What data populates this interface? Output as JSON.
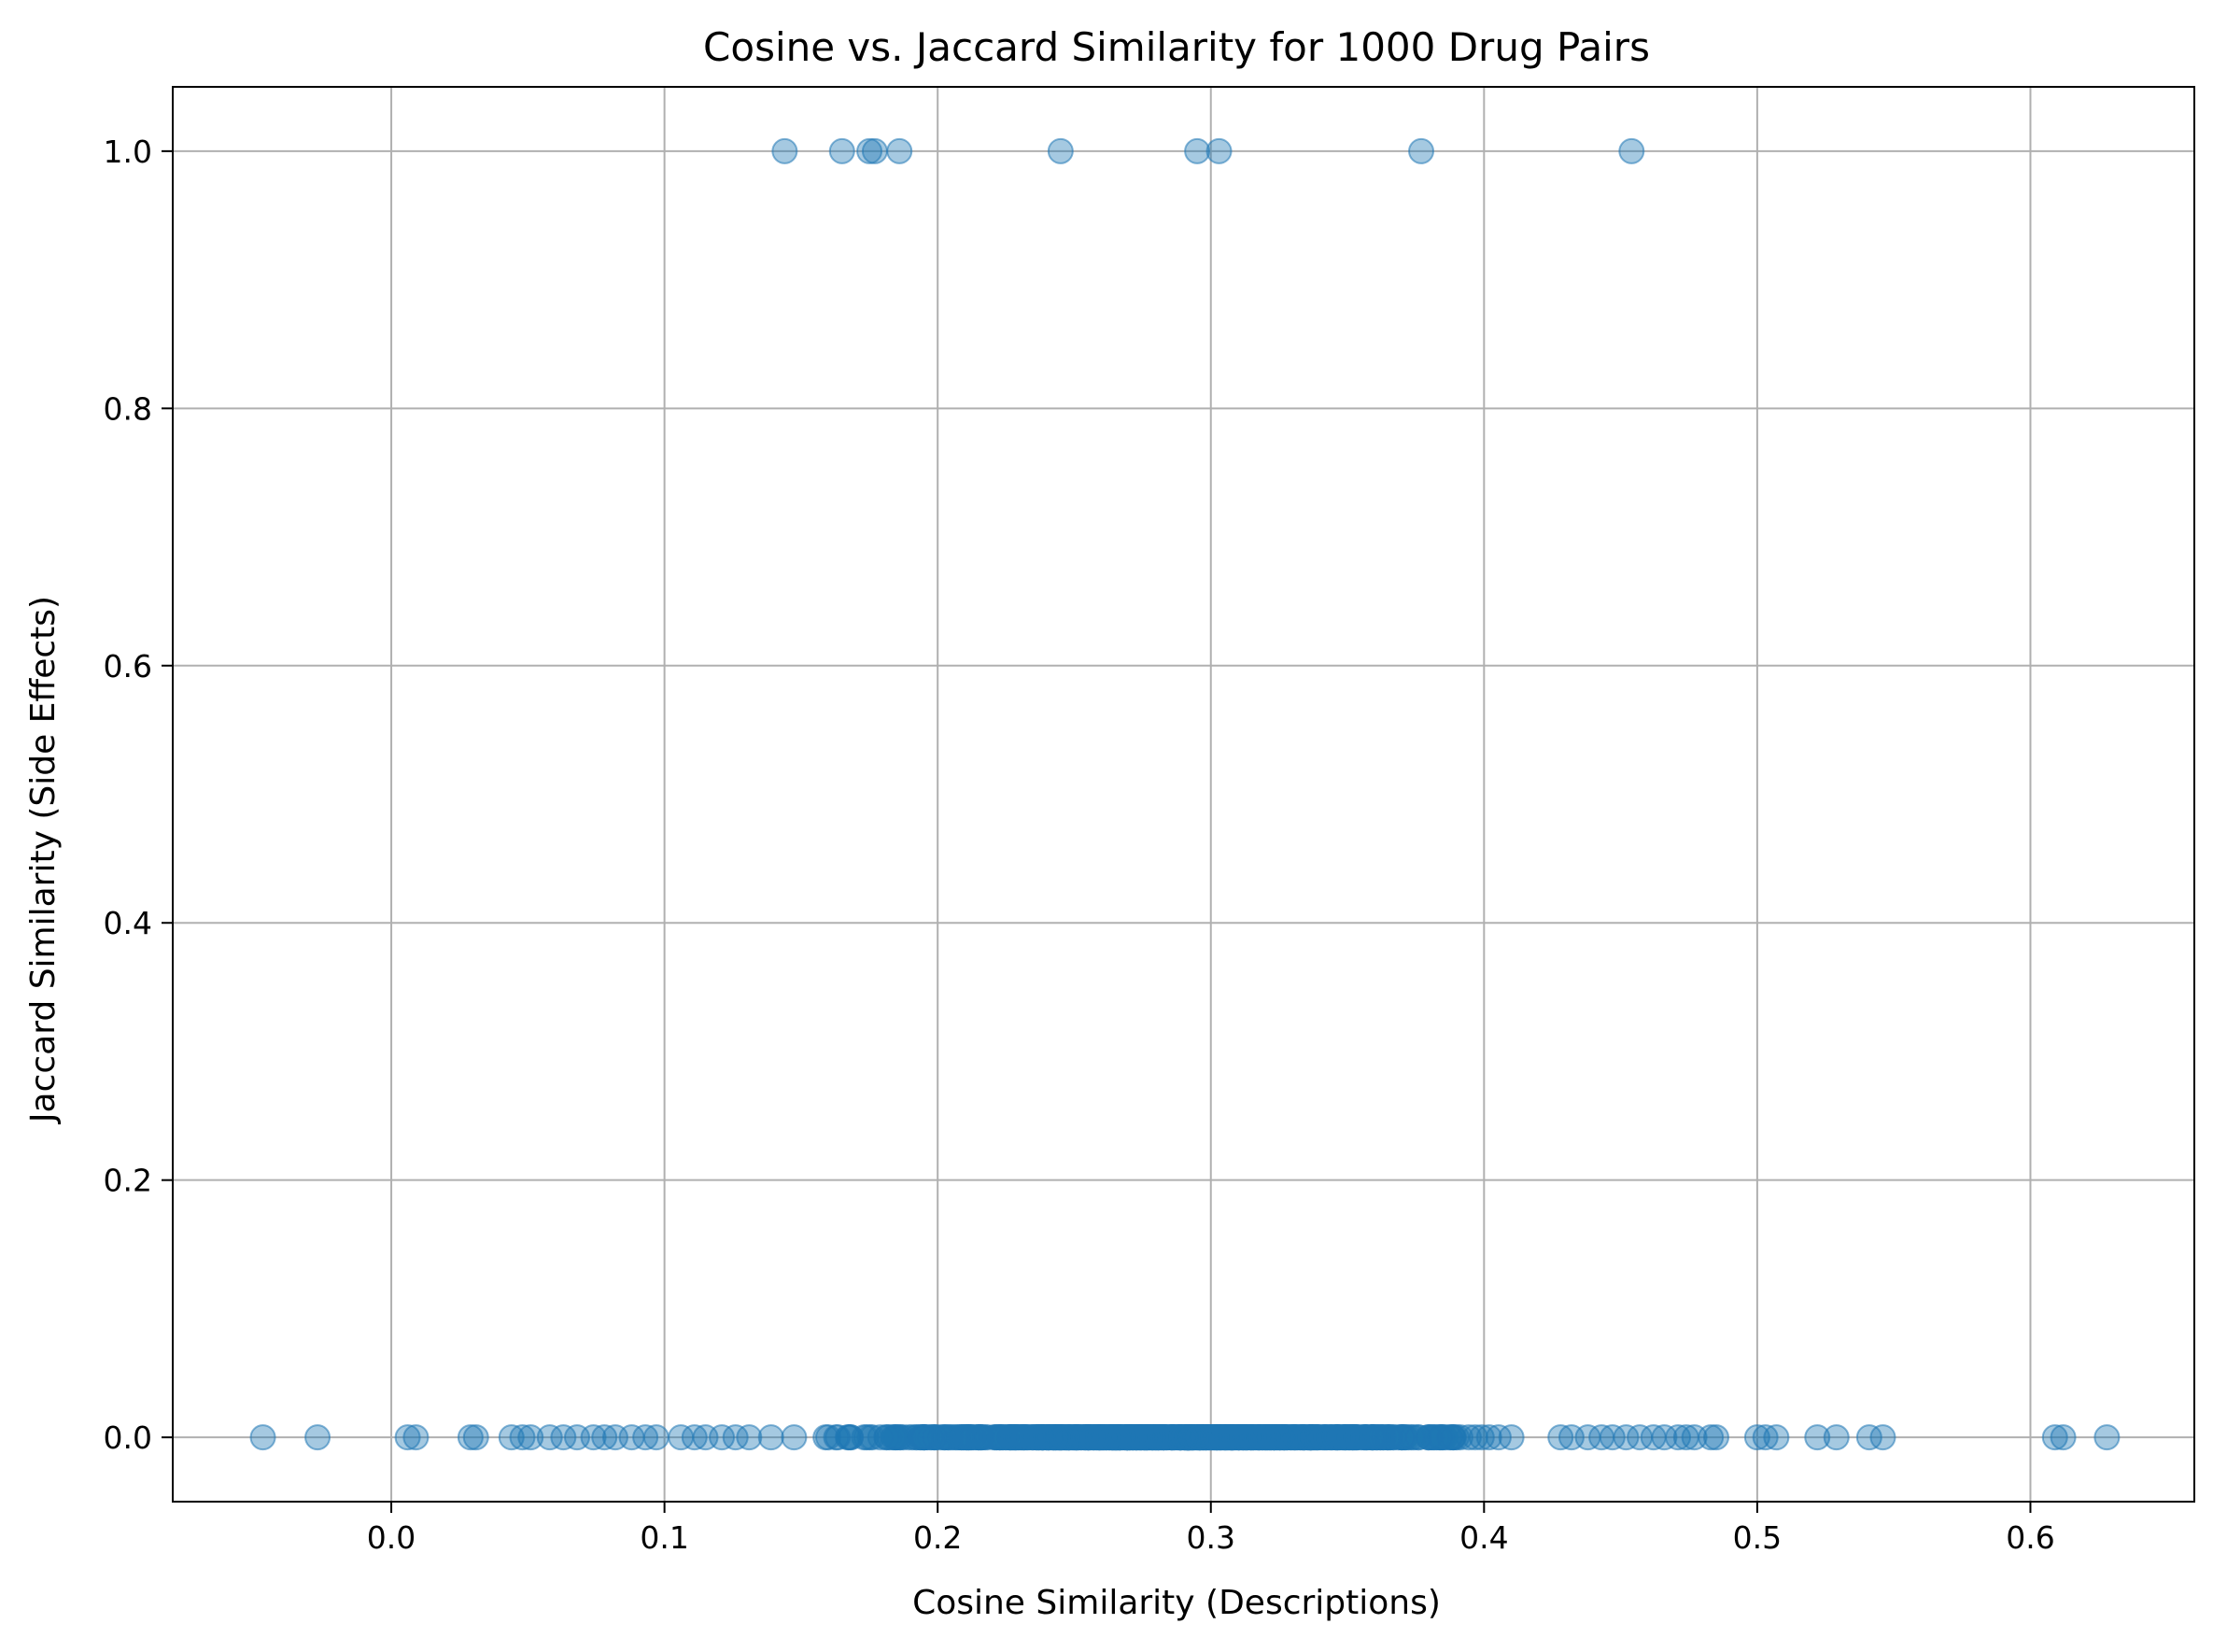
{
  "chart_data": {
    "type": "scatter",
    "title": "Cosine vs. Jaccard Similarity for 1000 Drug Pairs",
    "xlabel": "Cosine Similarity (Descriptions)",
    "ylabel": "Jaccard Similarity (Side Effects)",
    "xlim": [
      -0.08,
      0.66
    ],
    "ylim": [
      -0.05,
      1.05
    ],
    "xticks": [
      0.0,
      0.1,
      0.2,
      0.3,
      0.4,
      0.5,
      0.6
    ],
    "xtick_labels": [
      "0.0",
      "0.1",
      "0.2",
      "0.3",
      "0.4",
      "0.5",
      "0.6"
    ],
    "yticks": [
      0.0,
      0.2,
      0.4,
      0.6,
      0.8,
      1.0
    ],
    "ytick_labels": [
      "0.0",
      "0.2",
      "0.4",
      "0.6",
      "0.8",
      "1.0"
    ],
    "grid": true,
    "legend": "none",
    "marker_color": "#1f77b4",
    "marker_alpha": 0.4,
    "series": [
      {
        "points_jaccard_1": [
          [
            0.144,
            1.0
          ],
          [
            0.165,
            1.0
          ],
          [
            0.175,
            1.0
          ],
          [
            0.177,
            1.0
          ],
          [
            0.186,
            1.0
          ],
          [
            0.245,
            1.0
          ],
          [
            0.295,
            1.0
          ],
          [
            0.303,
            1.0
          ],
          [
            0.377,
            1.0
          ],
          [
            0.454,
            1.0
          ]
        ],
        "points_jaccard_0_sparse": [
          [
            -0.047,
            0.0
          ],
          [
            -0.027,
            0.0
          ],
          [
            0.006,
            0.0
          ],
          [
            0.009,
            0.0
          ],
          [
            0.029,
            0.0
          ],
          [
            0.031,
            0.0
          ],
          [
            0.044,
            0.0
          ],
          [
            0.048,
            0.0
          ],
          [
            0.051,
            0.0
          ],
          [
            0.058,
            0.0
          ],
          [
            0.063,
            0.0
          ],
          [
            0.068,
            0.0
          ],
          [
            0.074,
            0.0
          ],
          [
            0.078,
            0.0
          ],
          [
            0.082,
            0.0
          ],
          [
            0.088,
            0.0
          ],
          [
            0.093,
            0.0
          ],
          [
            0.097,
            0.0
          ],
          [
            0.106,
            0.0
          ],
          [
            0.111,
            0.0
          ],
          [
            0.115,
            0.0
          ],
          [
            0.121,
            0.0
          ],
          [
            0.126,
            0.0
          ],
          [
            0.131,
            0.0
          ],
          [
            0.139,
            0.0
          ],
          [
            0.428,
            0.0
          ],
          [
            0.432,
            0.0
          ],
          [
            0.438,
            0.0
          ],
          [
            0.443,
            0.0
          ],
          [
            0.447,
            0.0
          ],
          [
            0.452,
            0.0
          ],
          [
            0.457,
            0.0
          ],
          [
            0.462,
            0.0
          ],
          [
            0.466,
            0.0
          ],
          [
            0.471,
            0.0
          ],
          [
            0.474,
            0.0
          ],
          [
            0.477,
            0.0
          ],
          [
            0.483,
            0.0
          ],
          [
            0.485,
            0.0
          ],
          [
            0.5,
            0.0
          ],
          [
            0.503,
            0.0
          ],
          [
            0.507,
            0.0
          ],
          [
            0.522,
            0.0
          ],
          [
            0.529,
            0.0
          ],
          [
            0.541,
            0.0
          ],
          [
            0.546,
            0.0
          ],
          [
            0.609,
            0.0
          ],
          [
            0.612,
            0.0
          ],
          [
            0.628,
            0.0
          ]
        ],
        "dense_band_jaccard_0": {
          "x_from": 0.14,
          "x_to": 0.425,
          "y": 0.0,
          "count": 941
        }
      }
    ]
  }
}
